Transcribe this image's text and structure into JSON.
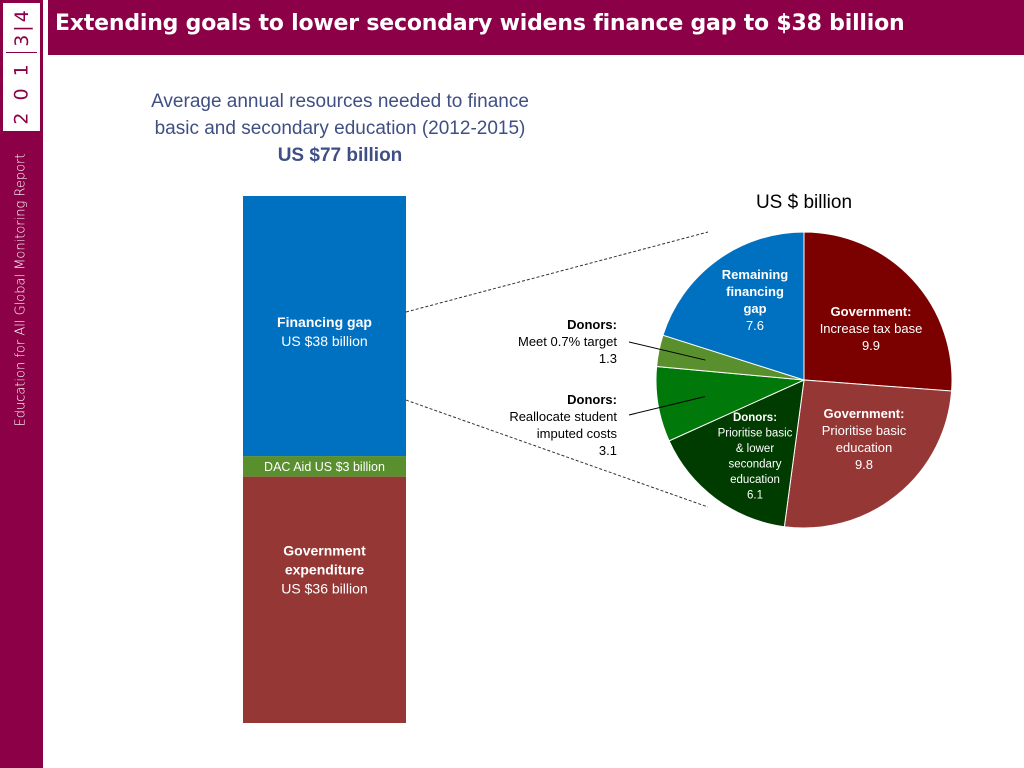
{
  "sidebar": {
    "year_top": "3|4",
    "year_bottom": "2 0 1",
    "report_name": "Education for All Global Monitoring Report"
  },
  "header": {
    "title": "Extending goals to lower secondary widens finance gap to $38 billion"
  },
  "chart_title": {
    "line1": "Average annual resources needed to finance",
    "line2": "basic and secondary education (2012-2015)",
    "line3": "US $77 billion"
  },
  "colors": {
    "brand": "#8b0046",
    "title_blue": "#3f4f83",
    "gap_blue": "#0070c0",
    "dac_green": "#5a8f2e",
    "gov_red": "#953735",
    "gov_dark_red": "#7b0000",
    "donor_green": "#00780a",
    "donor_dark_green": "#003b00"
  },
  "chart_data": [
    {
      "type": "bar",
      "stacked": true,
      "title": "",
      "unit": "US$ billion",
      "segments": [
        {
          "key": "government",
          "label_lines": [
            "Government",
            "expenditure"
          ],
          "value_text": "US $36 billion",
          "value": 36,
          "color": "#953735"
        },
        {
          "key": "dac",
          "label_lines": [],
          "value_text": "DAC Aid US $3 billion",
          "value": 3,
          "color": "#5a8f2e"
        },
        {
          "key": "gap",
          "label_lines": [
            "Financing gap"
          ],
          "value_text": "US $38 billion",
          "value": 38,
          "color": "#0070c0"
        }
      ]
    },
    {
      "type": "pie",
      "title": "US $ billion",
      "unit": "US$ billion",
      "slices": [
        {
          "key": "gov-tax",
          "label_lines": [
            "Government:",
            "Increase tax base"
          ],
          "value_text": "9.9",
          "value": 9.9,
          "color": "#7b0000"
        },
        {
          "key": "gov-prioritise",
          "label_lines": [
            "Government:",
            "Prioritise basic",
            "education"
          ],
          "value_text": "9.8",
          "value": 9.8,
          "color": "#953735"
        },
        {
          "key": "donor-prioritise",
          "label_lines": [
            "Donors:",
            "Prioritise basic",
            "& lower",
            "secondary",
            "education"
          ],
          "value_text": "6.1",
          "value": 6.1,
          "color": "#003b00"
        },
        {
          "key": "donor-reallocate",
          "label_lines": [
            "Donors:",
            "Reallocate student",
            "imputed costs"
          ],
          "value_text": "3.1",
          "value": 3.1,
          "color": "#00780a"
        },
        {
          "key": "donor-target",
          "label_lines": [
            "Donors:",
            "Meet 0.7% target"
          ],
          "value_text": "1.3",
          "value": 1.3,
          "color": "#5a8f2e"
        },
        {
          "key": "remaining-gap",
          "label_lines": [
            "Remaining",
            "financing",
            "gap"
          ],
          "value_text": "7.6",
          "value": 7.6,
          "color": "#0070c0"
        }
      ]
    }
  ]
}
